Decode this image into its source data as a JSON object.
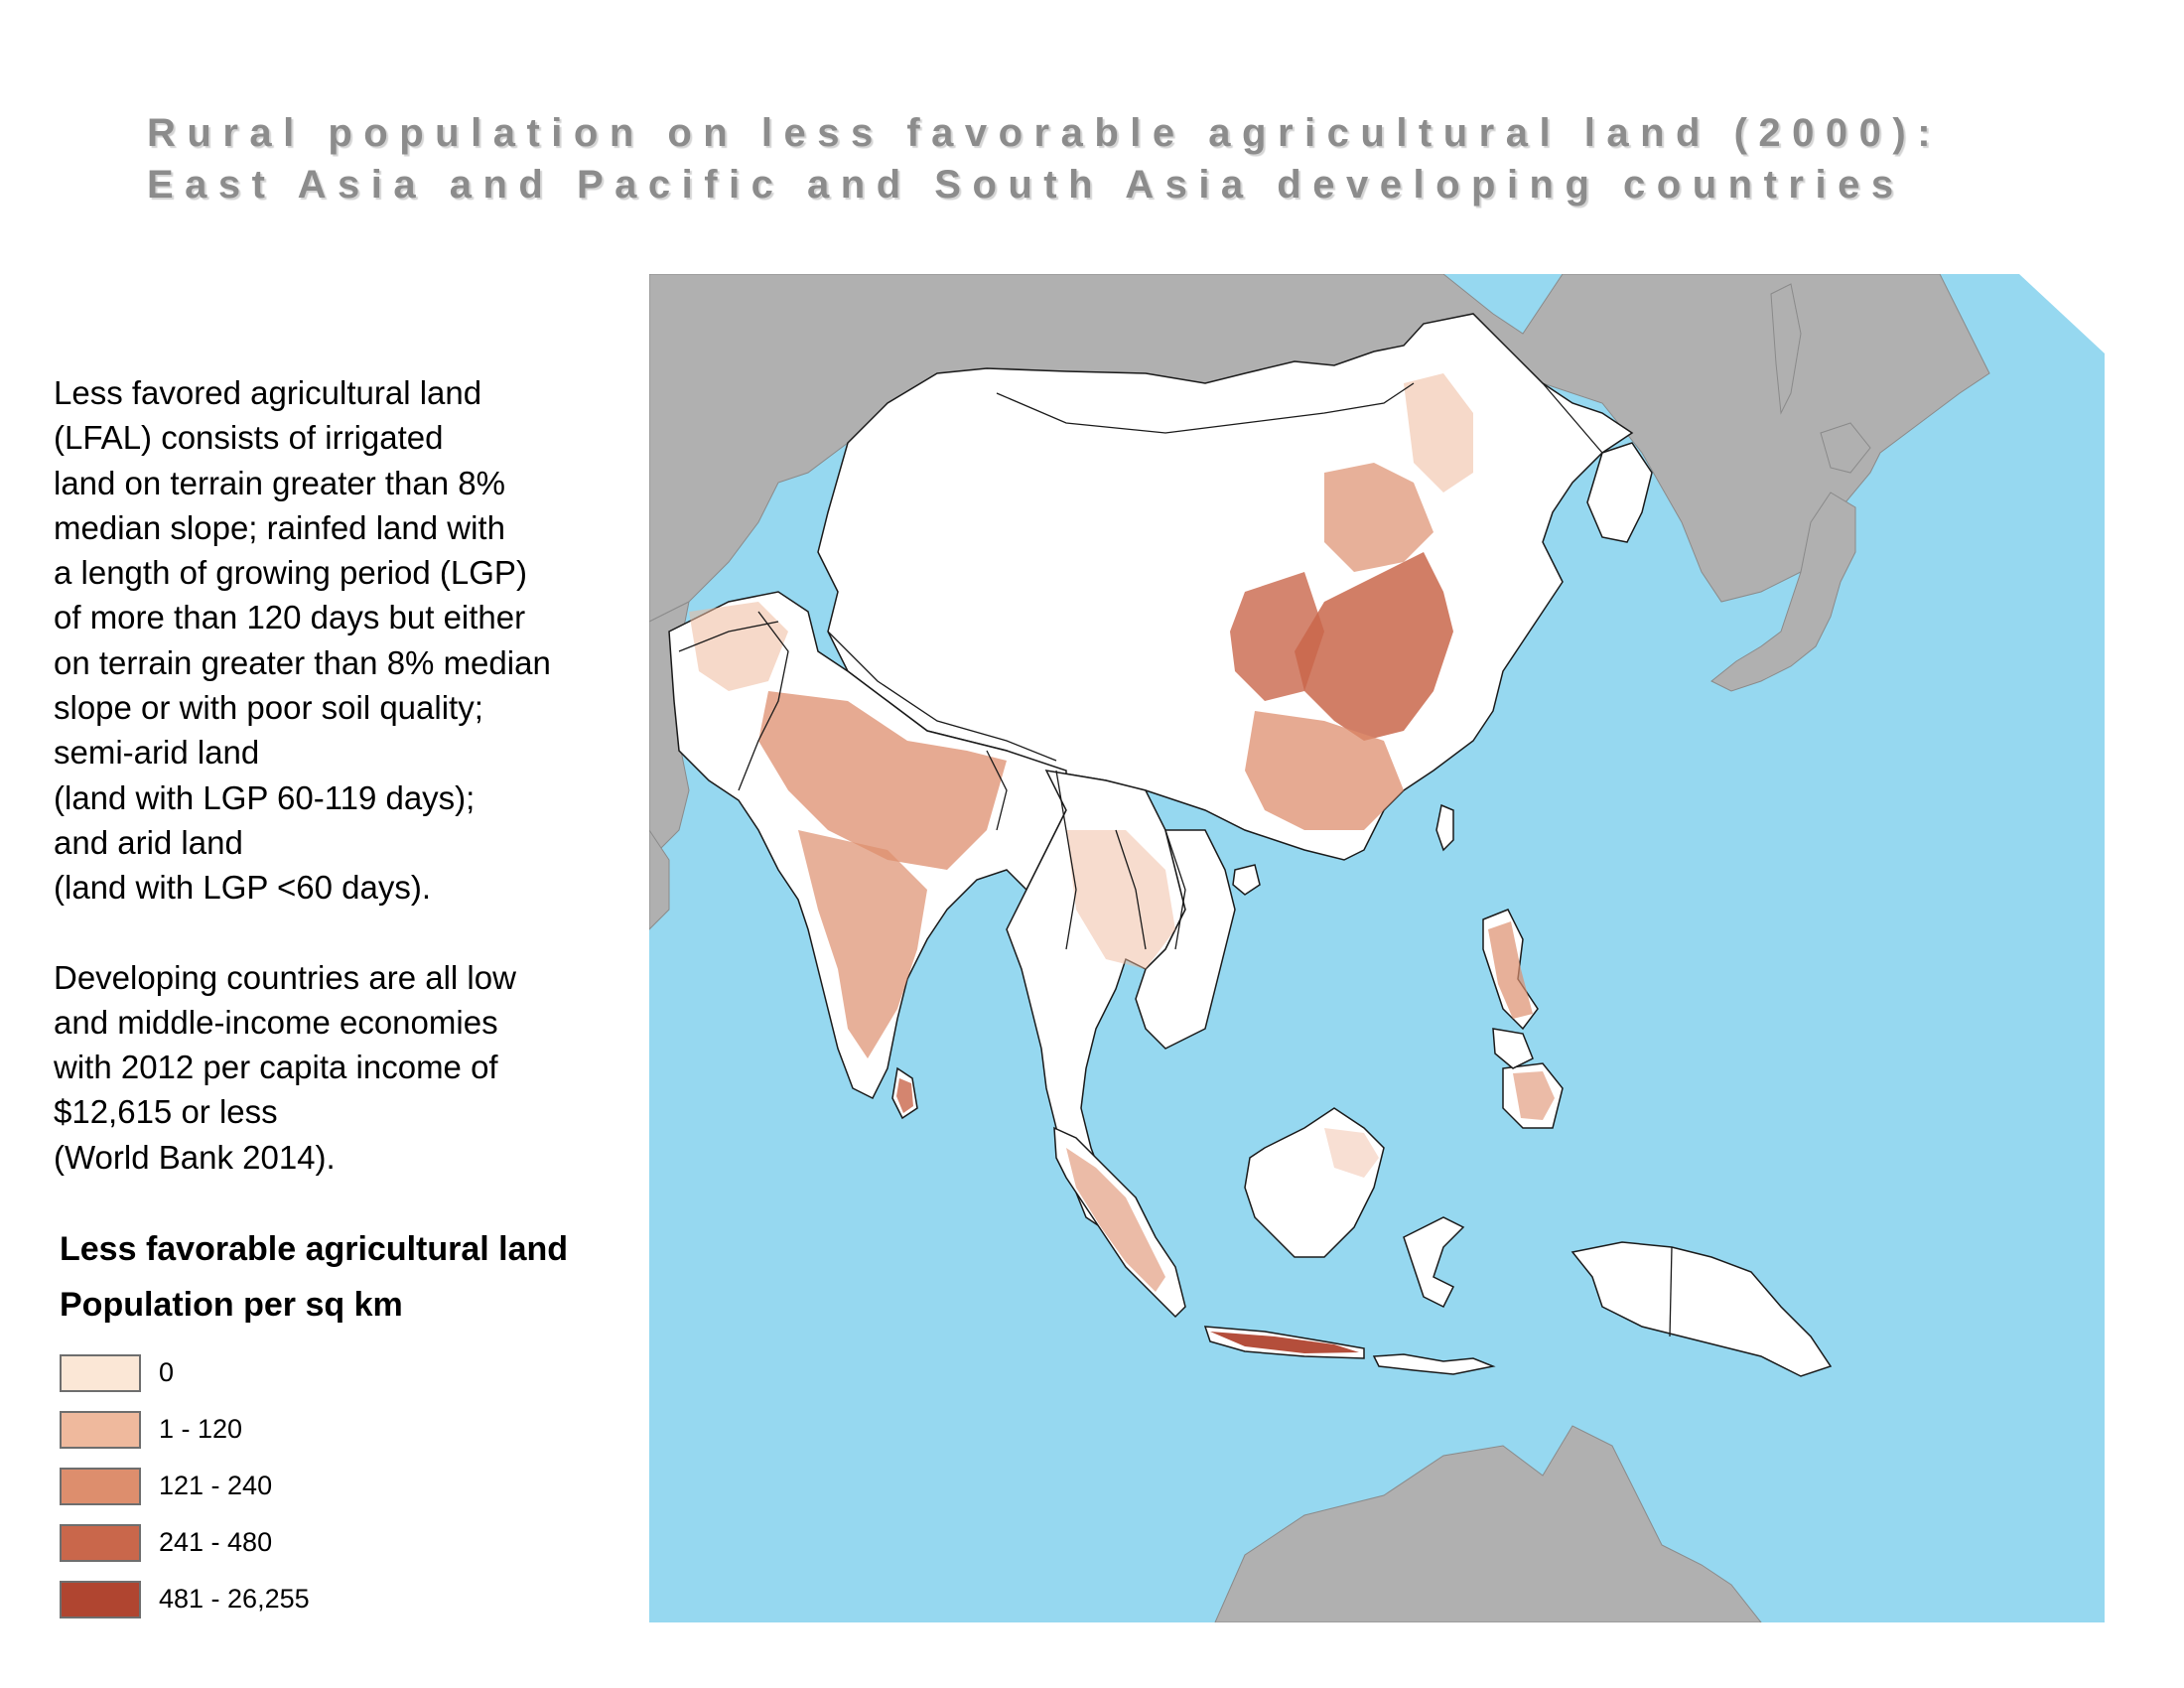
{
  "title": {
    "line1": "Rural population on less favorable agricultural land (2000):",
    "line2": "East Asia and Pacific and South Asia developing countries"
  },
  "description": {
    "paragraph1_lines": [
      "Less favored agricultural land",
      "(LFAL) consists of irrigated",
      "land on terrain greater than 8%",
      "median slope; rainfed land with",
      "a length of growing period (LGP)",
      "of more than 120 days but either",
      "on terrain greater than 8% median",
      "slope or with poor soil quality;",
      "semi-arid land",
      "(land with LGP 60-119 days);",
      "and arid land",
      "(land with LGP <60 days)."
    ],
    "paragraph2_lines": [
      "Developing countries are all low",
      "and middle-income economies",
      "with 2012 per capita income of",
      "$12,615 or less",
      "(World Bank 2014)."
    ]
  },
  "legend": {
    "title": "Less favorable agricultural land",
    "subtitle": "Population per sq km",
    "items": [
      {
        "label": "0",
        "color": "#fbe7d6"
      },
      {
        "label": "1 - 120",
        "color": "#efb99d"
      },
      {
        "label": "121 - 240",
        "color": "#dd8e6d"
      },
      {
        "label": "241 - 480",
        "color": "#c9674b"
      },
      {
        "label": "481 - 26,255",
        "color": "#b04530"
      }
    ]
  },
  "map": {
    "ocean_color": "#96d8f0",
    "other_land_color": "#b0b0b0",
    "region_land_color": "#ffffff",
    "border_color": "#1a1a1a"
  }
}
